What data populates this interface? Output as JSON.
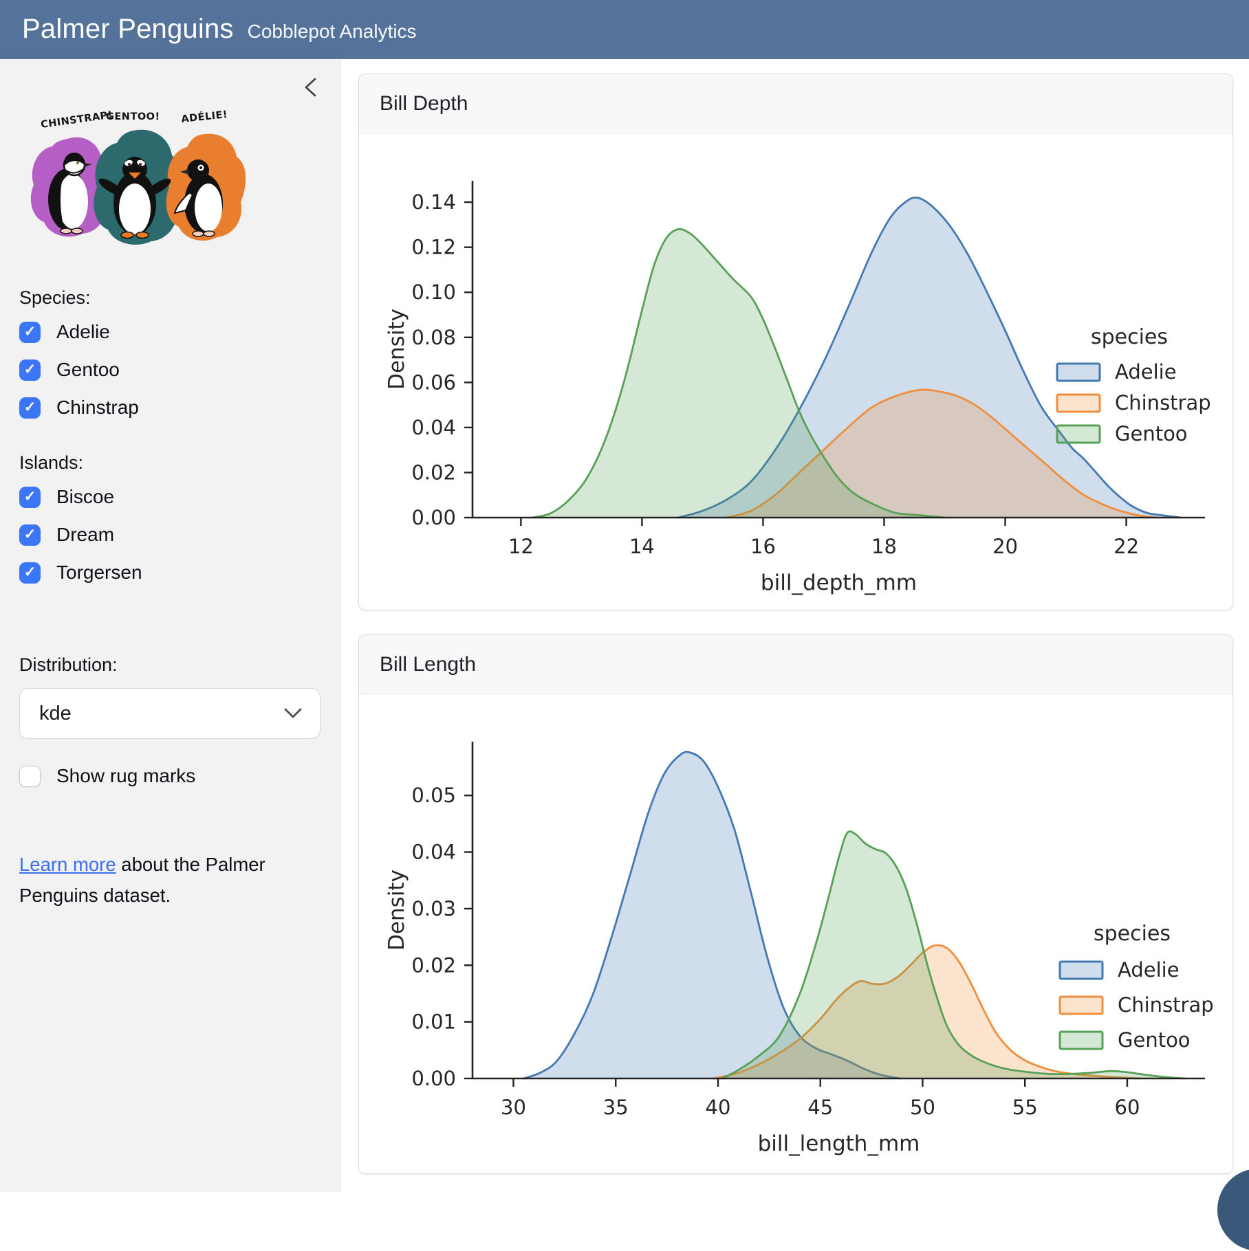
{
  "header": {
    "title": "Palmer Penguins",
    "subtitle": "Cobblepot Analytics"
  },
  "sidebar": {
    "artwork_labels": {
      "chinstrap": "CHINSTRAP!",
      "gentoo": "GENTOO!",
      "adelie": "ADÉLIE!"
    },
    "species": {
      "label": "Species:",
      "options": [
        {
          "label": "Adelie",
          "checked": true
        },
        {
          "label": "Gentoo",
          "checked": true
        },
        {
          "label": "Chinstrap",
          "checked": true
        }
      ]
    },
    "islands": {
      "label": "Islands:",
      "options": [
        {
          "label": "Biscoe",
          "checked": true
        },
        {
          "label": "Dream",
          "checked": true
        },
        {
          "label": "Torgersen",
          "checked": true
        }
      ]
    },
    "distribution": {
      "label": "Distribution:",
      "value": "kde"
    },
    "rug": {
      "label": "Show rug marks",
      "checked": false
    },
    "footer": {
      "link_text": "Learn more",
      "rest_text": " about the Palmer Penguins dataset."
    }
  },
  "icons": {
    "check_glyph": "✓",
    "collapse": "chevron-left",
    "select": "chevron-down"
  },
  "colors": {
    "header_bg": "#55739A",
    "checkbox_blue": "#3B76F6",
    "link_blue": "#3B6EF5",
    "corner_wedge": "#3A587A",
    "adelie_line": "#4379B2",
    "chinstrap_line": "#EF8E3C",
    "gentoo_line": "#57A156"
  },
  "chart_data": [
    {
      "type": "area",
      "title": "Bill Depth",
      "xlabel": "bill_depth_mm",
      "ylabel": "Density",
      "xlim": [
        11.2,
        23.3
      ],
      "ylim": [
        0,
        0.1495
      ],
      "grid": false,
      "legend": {
        "title": "species",
        "position": "center right"
      },
      "xticks": [
        12,
        14,
        16,
        18,
        20,
        22
      ],
      "xtick_labels": [
        "12",
        "14",
        "16",
        "18",
        "20",
        "22"
      ],
      "yticks": [
        0.0,
        0.02,
        0.04,
        0.06,
        0.08,
        0.1,
        0.12,
        0.14
      ],
      "ytick_labels": [
        "0.00",
        "0.02",
        "0.04",
        "0.06",
        "0.08",
        "0.10",
        "0.12",
        "0.14"
      ],
      "series": [
        {
          "name": "Adelie",
          "line": "#4379B2",
          "fill": "rgba(67,121,178,0.25)",
          "points": [
            [
              14.6,
              0
            ],
            [
              15.0,
              0.003
            ],
            [
              15.4,
              0.008
            ],
            [
              15.8,
              0.016
            ],
            [
              16.2,
              0.03
            ],
            [
              16.6,
              0.048
            ],
            [
              17.0,
              0.069
            ],
            [
              17.4,
              0.093
            ],
            [
              17.8,
              0.118
            ],
            [
              18.1,
              0.133
            ],
            [
              18.35,
              0.14
            ],
            [
              18.55,
              0.142
            ],
            [
              18.8,
              0.138
            ],
            [
              19.1,
              0.129
            ],
            [
              19.4,
              0.116
            ],
            [
              19.7,
              0.1
            ],
            [
              20.0,
              0.083
            ],
            [
              20.3,
              0.065
            ],
            [
              20.6,
              0.049
            ],
            [
              20.9,
              0.038
            ],
            [
              21.1,
              0.031
            ],
            [
              21.3,
              0.026
            ],
            [
              21.5,
              0.02
            ],
            [
              21.7,
              0.014
            ],
            [
              21.9,
              0.009
            ],
            [
              22.1,
              0.005
            ],
            [
              22.35,
              0.002
            ],
            [
              22.6,
              0.001
            ],
            [
              22.9,
              0
            ]
          ]
        },
        {
          "name": "Chinstrap",
          "line": "#EF8E3C",
          "fill": "rgba(239,142,60,0.25)",
          "points": [
            [
              15.4,
              0
            ],
            [
              15.8,
              0.003
            ],
            [
              16.2,
              0.01
            ],
            [
              16.6,
              0.02
            ],
            [
              17.0,
              0.03
            ],
            [
              17.4,
              0.04
            ],
            [
              17.8,
              0.049
            ],
            [
              18.2,
              0.054
            ],
            [
              18.6,
              0.0567
            ],
            [
              18.9,
              0.056
            ],
            [
              19.2,
              0.054
            ],
            [
              19.5,
              0.05
            ],
            [
              19.8,
              0.044
            ],
            [
              20.1,
              0.037
            ],
            [
              20.4,
              0.03
            ],
            [
              20.7,
              0.023
            ],
            [
              21.0,
              0.016
            ],
            [
              21.3,
              0.01
            ],
            [
              21.6,
              0.006
            ],
            [
              21.9,
              0.003
            ],
            [
              22.2,
              0.001
            ],
            [
              22.5,
              0
            ]
          ]
        },
        {
          "name": "Gentoo",
          "line": "#57A156",
          "fill": "rgba(87,161,86,0.25)",
          "points": [
            [
              12.2,
              0
            ],
            [
              12.5,
              0.002
            ],
            [
              12.8,
              0.008
            ],
            [
              13.1,
              0.018
            ],
            [
              13.4,
              0.035
            ],
            [
              13.7,
              0.06
            ],
            [
              14.0,
              0.092
            ],
            [
              14.2,
              0.112
            ],
            [
              14.4,
              0.124
            ],
            [
              14.6,
              0.128
            ],
            [
              14.8,
              0.126
            ],
            [
              15.0,
              0.121
            ],
            [
              15.2,
              0.115
            ],
            [
              15.5,
              0.106
            ],
            [
              15.8,
              0.098
            ],
            [
              16.0,
              0.088
            ],
            [
              16.2,
              0.075
            ],
            [
              16.4,
              0.061
            ],
            [
              16.6,
              0.047
            ],
            [
              16.8,
              0.036
            ],
            [
              17.0,
              0.027
            ],
            [
              17.2,
              0.019
            ],
            [
              17.4,
              0.013
            ],
            [
              17.6,
              0.009
            ],
            [
              17.9,
              0.005
            ],
            [
              18.2,
              0.002
            ],
            [
              18.6,
              0.001
            ],
            [
              19.0,
              0
            ]
          ]
        }
      ]
    },
    {
      "type": "area",
      "title": "Bill Length",
      "xlabel": "bill_length_mm",
      "ylabel": "Density",
      "xlim": [
        28.0,
        63.8
      ],
      "ylim": [
        0,
        0.0595
      ],
      "grid": false,
      "legend": {
        "title": "species",
        "position": "center right"
      },
      "xticks": [
        30,
        35,
        40,
        45,
        50,
        55,
        60
      ],
      "xtick_labels": [
        "30",
        "35",
        "40",
        "45",
        "50",
        "55",
        "60"
      ],
      "yticks": [
        0.0,
        0.01,
        0.02,
        0.03,
        0.04,
        0.05
      ],
      "ytick_labels": [
        "0.00",
        "0.01",
        "0.02",
        "0.03",
        "0.04",
        "0.05"
      ],
      "series": [
        {
          "name": "Adelie",
          "line": "#4379B2",
          "fill": "rgba(67,121,178,0.25)",
          "points": [
            [
              30.5,
              0
            ],
            [
              31.3,
              0.001
            ],
            [
              32.1,
              0.003
            ],
            [
              33.0,
              0.008
            ],
            [
              33.9,
              0.015
            ],
            [
              34.8,
              0.025
            ],
            [
              35.7,
              0.036
            ],
            [
              36.6,
              0.047
            ],
            [
              37.4,
              0.054
            ],
            [
              38.2,
              0.0573
            ],
            [
              38.7,
              0.0575
            ],
            [
              39.3,
              0.056
            ],
            [
              40.0,
              0.0515
            ],
            [
              40.8,
              0.044
            ],
            [
              41.6,
              0.033
            ],
            [
              42.4,
              0.0215
            ],
            [
              43.2,
              0.0125
            ],
            [
              44.0,
              0.0075
            ],
            [
              44.8,
              0.0053
            ],
            [
              45.6,
              0.0042
            ],
            [
              46.4,
              0.003
            ],
            [
              47.2,
              0.0016
            ],
            [
              48.0,
              0.0006
            ],
            [
              48.9,
              0
            ]
          ]
        },
        {
          "name": "Chinstrap",
          "line": "#EF8E3C",
          "fill": "rgba(239,142,60,0.25)",
          "points": [
            [
              39.8,
              0
            ],
            [
              41.0,
              0.001
            ],
            [
              42.0,
              0.0025
            ],
            [
              43.0,
              0.0045
            ],
            [
              44.0,
              0.007
            ],
            [
              45.0,
              0.0105
            ],
            [
              45.8,
              0.014
            ],
            [
              46.5,
              0.0163
            ],
            [
              47.0,
              0.0172
            ],
            [
              47.6,
              0.0167
            ],
            [
              48.2,
              0.0168
            ],
            [
              48.8,
              0.018
            ],
            [
              49.4,
              0.02
            ],
            [
              50.0,
              0.0222
            ],
            [
              50.6,
              0.0235
            ],
            [
              51.2,
              0.023
            ],
            [
              51.8,
              0.0205
            ],
            [
              52.4,
              0.0165
            ],
            [
              53.0,
              0.012
            ],
            [
              53.6,
              0.008
            ],
            [
              54.3,
              0.005
            ],
            [
              55.0,
              0.0032
            ],
            [
              55.8,
              0.002
            ],
            [
              56.6,
              0.0012
            ],
            [
              57.6,
              0.0007
            ],
            [
              58.6,
              0.0004
            ],
            [
              59.6,
              0.0002
            ],
            [
              60.6,
              0
            ]
          ]
        },
        {
          "name": "Gentoo",
          "line": "#57A156",
          "fill": "rgba(87,161,86,0.25)",
          "points": [
            [
              40.2,
              0
            ],
            [
              41.0,
              0.0015
            ],
            [
              42.0,
              0.004
            ],
            [
              43.0,
              0.0075
            ],
            [
              44.0,
              0.015
            ],
            [
              44.8,
              0.024
            ],
            [
              45.4,
              0.032
            ],
            [
              45.9,
              0.039
            ],
            [
              46.3,
              0.0433
            ],
            [
              46.7,
              0.0432
            ],
            [
              47.2,
              0.0415
            ],
            [
              47.7,
              0.0405
            ],
            [
              48.2,
              0.0398
            ],
            [
              48.7,
              0.0375
            ],
            [
              49.2,
              0.0335
            ],
            [
              49.7,
              0.0275
            ],
            [
              50.2,
              0.0205
            ],
            [
              50.7,
              0.0143
            ],
            [
              51.2,
              0.0092
            ],
            [
              51.8,
              0.0058
            ],
            [
              52.5,
              0.0038
            ],
            [
              53.3,
              0.0025
            ],
            [
              54.2,
              0.0016
            ],
            [
              55.2,
              0.0011
            ],
            [
              56.2,
              0.0008
            ],
            [
              57.2,
              0.0008
            ],
            [
              58.2,
              0.001
            ],
            [
              59.2,
              0.0013
            ],
            [
              60.0,
              0.0011
            ],
            [
              61.0,
              0.0006
            ],
            [
              62.0,
              0.0002
            ],
            [
              62.8,
              0
            ]
          ]
        }
      ]
    }
  ]
}
